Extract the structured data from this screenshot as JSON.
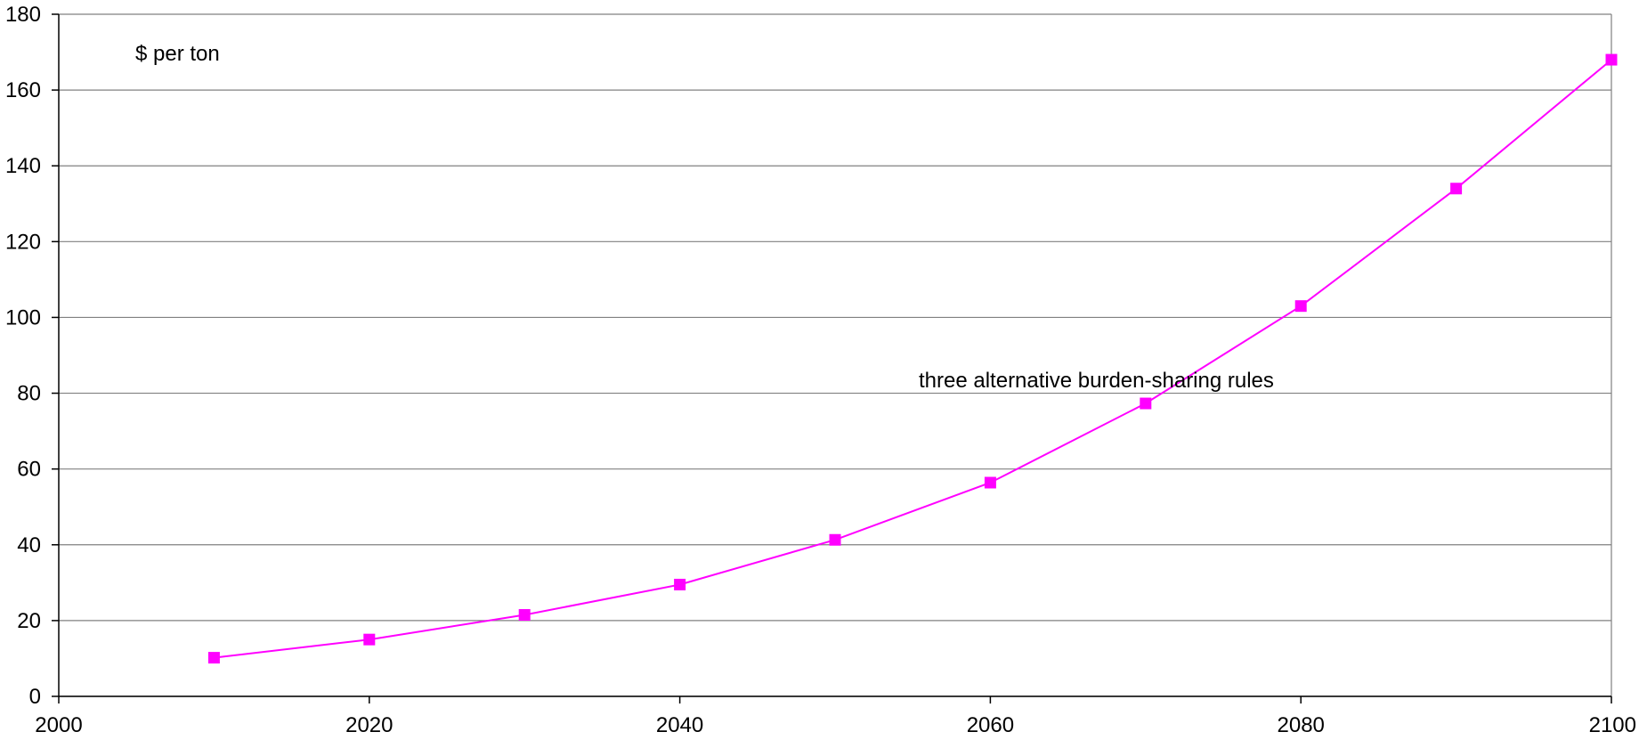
{
  "chart_data": {
    "type": "line",
    "title": "",
    "xlabel": "",
    "ylabel": "$ per ton",
    "xlim": [
      2000,
      2100
    ],
    "ylim": [
      0,
      180
    ],
    "x_ticks": [
      2000,
      2020,
      2040,
      2060,
      2080,
      2100
    ],
    "y_ticks": [
      0,
      20,
      40,
      60,
      80,
      100,
      120,
      140,
      160,
      180
    ],
    "grid": "horizontal",
    "legend": "none",
    "annotations": [
      {
        "text": "three alternative burden-sharing rules"
      }
    ],
    "series": [
      {
        "color": "#ff00ff",
        "marker": "square",
        "x": [
          2010,
          2020,
          2030,
          2040,
          2050,
          2060,
          2070,
          2080,
          2090,
          2100
        ],
        "y": [
          10.2,
          15.0,
          21.5,
          29.5,
          41.3,
          56.4,
          77.3,
          103.0,
          134.0,
          168.0
        ]
      }
    ]
  }
}
